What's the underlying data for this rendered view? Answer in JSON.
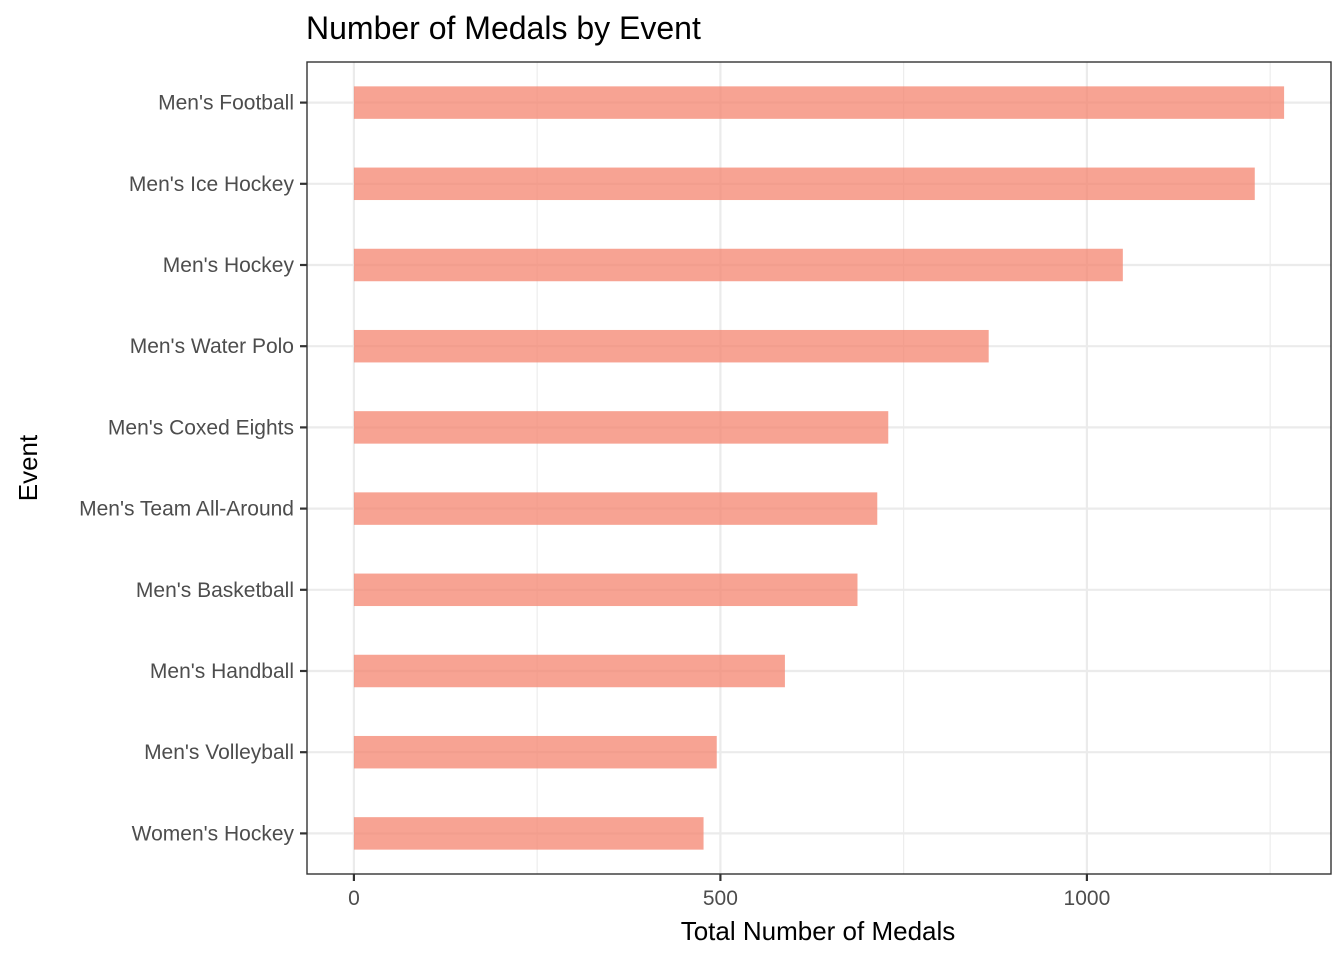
{
  "chart_data": {
    "type": "bar",
    "orientation": "horizontal",
    "title": "Number of Medals by Event",
    "xlabel": "Total Number of Medals",
    "ylabel": "Event",
    "categories": [
      "Men's Football",
      "Men's Ice Hockey",
      "Men's Hockey",
      "Men's Water Polo",
      "Men's Coxed Eights",
      "Men's Team All-Around",
      "Men's Basketball",
      "Men's Handball",
      "Men's Volleyball",
      "Women's Hockey"
    ],
    "values": [
      1269,
      1229,
      1049,
      866,
      729,
      714,
      687,
      588,
      495,
      477
    ],
    "xlim": [
      -64,
      1333
    ],
    "x_ticks": [
      0,
      500,
      1000
    ],
    "x_tick_labels": [
      "0",
      "500",
      "1000"
    ],
    "bar_color": "#f4846f",
    "grid": true,
    "legend": "none"
  }
}
